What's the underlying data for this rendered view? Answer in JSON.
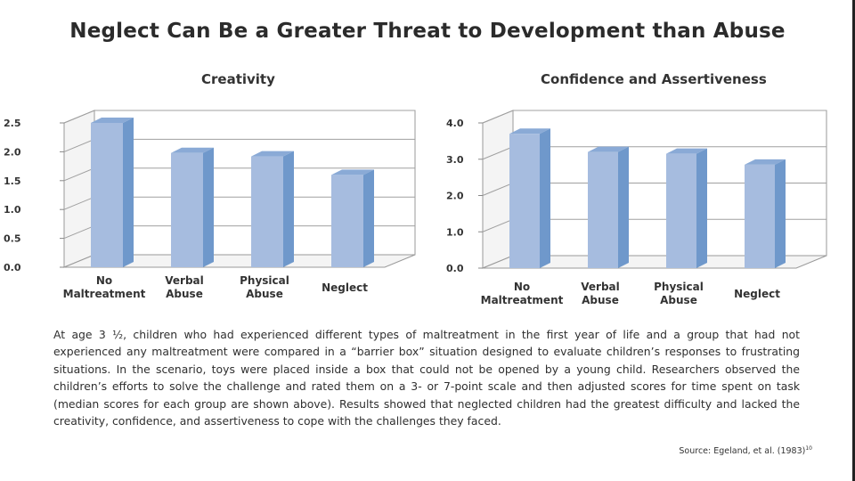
{
  "title": "Neglect Can Be a Greater Threat to Development than Abuse",
  "chart_data": [
    {
      "type": "bar",
      "title": "Creativity",
      "categories": [
        [
          "No",
          "Maltreatment"
        ],
        [
          "Verbal",
          "Abuse"
        ],
        [
          "Physical",
          "Abuse"
        ],
        [
          "Neglect"
        ]
      ],
      "values": [
        2.5,
        1.98,
        1.92,
        1.6
      ],
      "ylim": [
        0,
        2.5
      ],
      "yticks": [
        "0.0",
        "0.5",
        "1.0",
        "1.5",
        "2.0",
        "2.5"
      ],
      "xlabel": "",
      "ylabel": "",
      "grid": true,
      "bar_color": "#a6bcdf",
      "bar_side_color": "#6f98cb",
      "bar_top_color": "#8aaad6"
    },
    {
      "type": "bar",
      "title": "Confidence and Assertiveness",
      "categories": [
        [
          "No",
          "Maltreatment"
        ],
        [
          "Verbal",
          "Abuse"
        ],
        [
          "Physical",
          "Abuse"
        ],
        [
          "Neglect"
        ]
      ],
      "values": [
        3.7,
        3.2,
        3.15,
        2.85
      ],
      "ylim": [
        0,
        4.0
      ],
      "yticks": [
        "0.0",
        "1.0",
        "2.0",
        "3.0",
        "4.0"
      ],
      "xlabel": "",
      "ylabel": "",
      "grid": true,
      "bar_color": "#a6bcdf",
      "bar_side_color": "#6f98cb",
      "bar_top_color": "#8aaad6"
    }
  ],
  "description": "At age 3 ½, children who had experienced different types of maltreatment in the first year of life and a group that had not experienced any maltreatment were compared in a “barrier box” situation designed to evaluate children’s responses to frustrating situations. In the scenario, toys were placed inside a box that could not be opened by a young child. Researchers observed the children’s efforts to solve the challenge and rated them on a 3- or 7-point scale and then adjusted scores for time spent on task (median scores for each group are shown above). Results showed that neglected children had the greatest difficulty and lacked the creativity, confidence, and assertiveness to cope with the challenges they faced.",
  "source": "Source: Egeland, et al. (1983)",
  "source_ref": "10"
}
